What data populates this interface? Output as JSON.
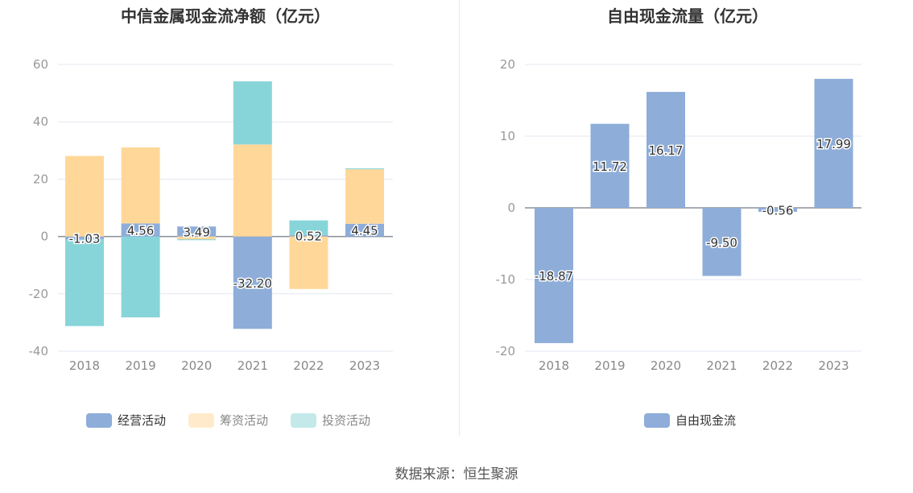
{
  "footer": "数据来源：恒生聚源",
  "chart_data": [
    {
      "type": "bar",
      "stacked": true,
      "title": "中信金属现金流净额（亿元）",
      "categories": [
        "2018",
        "2019",
        "2020",
        "2021",
        "2022",
        "2023"
      ],
      "ylim": [
        -40,
        60
      ],
      "yticks": [
        -40,
        -20,
        0,
        20,
        40,
        60
      ],
      "grid": true,
      "legend": "bottom",
      "series": [
        {
          "name": "经营活动",
          "color": "#8eadd9",
          "values": [
            -1.03,
            4.56,
            3.49,
            -32.2,
            0.52,
            4.45
          ],
          "labels": [
            "-1.03",
            "4.56",
            "3.49",
            "-32.20",
            "0.52",
            "4.45"
          ]
        },
        {
          "name": "筹资活动",
          "color": "#ffd899",
          "values": [
            28.1,
            26.5,
            -1.0,
            32.1,
            -18.3,
            19.0
          ]
        },
        {
          "name": "投资活动",
          "color": "#88d5d9",
          "values": [
            -30.2,
            -28.2,
            -0.3,
            22.0,
            5.1,
            0.3
          ]
        }
      ]
    },
    {
      "type": "bar",
      "title": "自由现金流量（亿元）",
      "categories": [
        "2018",
        "2019",
        "2020",
        "2021",
        "2022",
        "2023"
      ],
      "ylim": [
        -20,
        20
      ],
      "yticks": [
        -20,
        -10,
        0,
        10,
        20
      ],
      "grid": true,
      "legend": "bottom",
      "series": [
        {
          "name": "自由现金流",
          "color": "#8eadd9",
          "values": [
            -18.87,
            11.72,
            16.17,
            -9.5,
            -0.56,
            17.99
          ],
          "labels": [
            "-18.87",
            "11.72",
            "16.17",
            "-9.50",
            "-0.56",
            "17.99"
          ]
        }
      ]
    }
  ]
}
